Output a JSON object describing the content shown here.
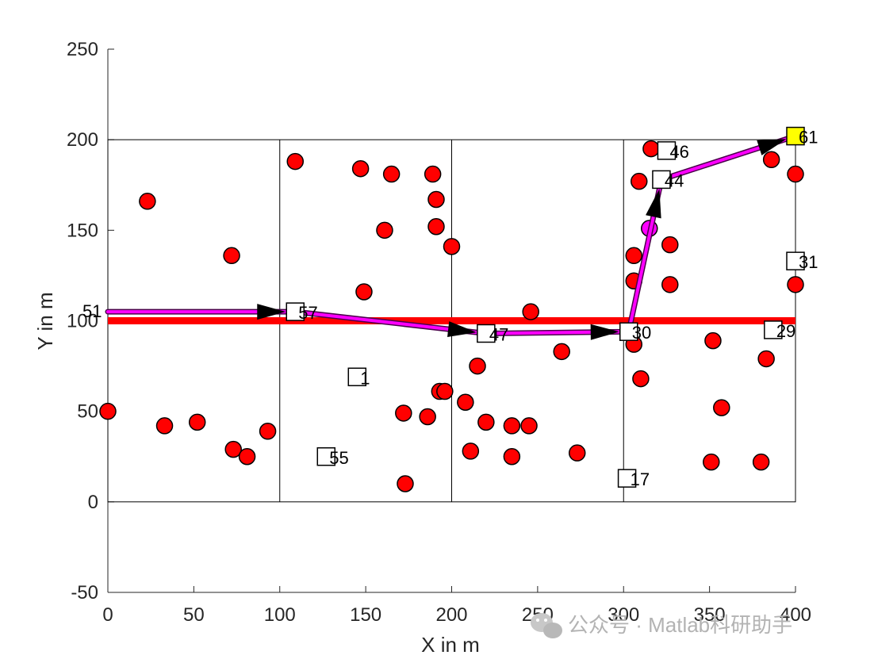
{
  "chart_data": {
    "type": "scatter",
    "title": "",
    "xlabel": "X in m",
    "ylabel": "Y in m",
    "xlim": [
      0,
      400
    ],
    "ylim": [
      -50,
      250
    ],
    "xticks": [
      0,
      50,
      100,
      150,
      200,
      250,
      300,
      350,
      400
    ],
    "yticks": [
      -50,
      0,
      50,
      100,
      150,
      200,
      250
    ],
    "grid": false,
    "field": {
      "x": [
        0,
        400
      ],
      "y": [
        0,
        200
      ],
      "column_dividers": [
        100,
        200,
        300
      ]
    },
    "red_band": {
      "y": 100,
      "x": [
        0,
        400
      ],
      "color": "#ff0000"
    },
    "sensor_nodes": {
      "color": "#ff0000",
      "points": [
        [
          0,
          50
        ],
        [
          23,
          166
        ],
        [
          33,
          42
        ],
        [
          52,
          44
        ],
        [
          72,
          136
        ],
        [
          73,
          29
        ],
        [
          81,
          25
        ],
        [
          93,
          39
        ],
        [
          109,
          188
        ],
        [
          147,
          184
        ],
        [
          149,
          116
        ],
        [
          161,
          150
        ],
        [
          165,
          181
        ],
        [
          172,
          49
        ],
        [
          173,
          10
        ],
        [
          186,
          47
        ],
        [
          189,
          181
        ],
        [
          191,
          167
        ],
        [
          191,
          152
        ],
        [
          193,
          61
        ],
        [
          196,
          61
        ],
        [
          200,
          141
        ],
        [
          208,
          55
        ],
        [
          211,
          28
        ],
        [
          215,
          75
        ],
        [
          220,
          44
        ],
        [
          235,
          42
        ],
        [
          235,
          25
        ],
        [
          245,
          42
        ],
        [
          246,
          105
        ],
        [
          264,
          83
        ],
        [
          273,
          27
        ],
        [
          306,
          136
        ],
        [
          306,
          122
        ],
        [
          306,
          87
        ],
        [
          309,
          177
        ],
        [
          310,
          68
        ],
        [
          316,
          195
        ],
        [
          327,
          142
        ],
        [
          327,
          120
        ],
        [
          352,
          89
        ],
        [
          351,
          22
        ],
        [
          357,
          52
        ],
        [
          380,
          22
        ],
        [
          383,
          79
        ],
        [
          386,
          189
        ],
        [
          400,
          181
        ],
        [
          400,
          120
        ]
      ]
    },
    "highlight_node": {
      "x": 315,
      "y": 151,
      "color": "#ff00ff"
    },
    "square_nodes": [
      {
        "id": "57",
        "x": 109,
        "y": 105
      },
      {
        "id": "1",
        "x": 145,
        "y": 69
      },
      {
        "id": "55",
        "x": 127,
        "y": 25
      },
      {
        "id": "47",
        "x": 220,
        "y": 93
      },
      {
        "id": "30",
        "x": 303,
        "y": 94
      },
      {
        "id": "17",
        "x": 302,
        "y": 13
      },
      {
        "id": "44",
        "x": 322,
        "y": 178
      },
      {
        "id": "46",
        "x": 325,
        "y": 194
      },
      {
        "id": "29",
        "x": 387,
        "y": 95
      },
      {
        "id": "31",
        "x": 400,
        "y": 133
      },
      {
        "id": "61",
        "x": 400,
        "y": 202,
        "fill": "#ffff00"
      }
    ],
    "origin_label": {
      "id": "51",
      "x": 0,
      "y": 105
    },
    "path": {
      "color": "#ff00ff",
      "points": [
        [
          0,
          105
        ],
        [
          109,
          105
        ],
        [
          220,
          93
        ],
        [
          303,
          94
        ],
        [
          322,
          178
        ],
        [
          400,
          202
        ]
      ]
    }
  },
  "watermark": "公众号 · Matlab科研助手"
}
